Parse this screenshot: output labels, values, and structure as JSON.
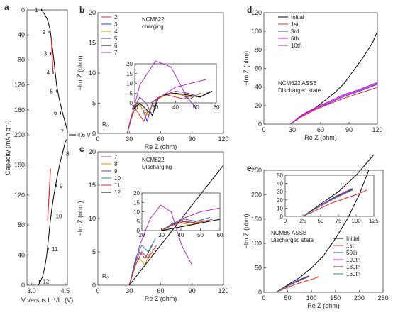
{
  "chart_data": [
    {
      "panel": "a",
      "type": "line",
      "xlabel": "V versus Li⁺/Li (V)",
      "ylabel": "Capacity (mAh g⁻¹)",
      "xticks": [
        "3.0",
        "4.5"
      ],
      "yticks": [
        "0",
        "40",
        "80",
        "120",
        "160",
        "200",
        "160",
        "120",
        "80",
        "40",
        "0"
      ],
      "xlim": [
        2.8,
        4.6
      ],
      "ylim_charge": [
        0,
        200
      ],
      "ylim_discharge": [
        200,
        0
      ],
      "x_label_45_alt": "4.6 V",
      "curve_charge": {
        "x": [
          3.45,
          3.6,
          3.72,
          3.78,
          3.83,
          3.88,
          3.93,
          3.99,
          4.05,
          4.12,
          4.22,
          4.35,
          4.46,
          4.55,
          4.6
        ],
        "y": [
          0,
          8,
          16,
          24,
          32,
          45,
          60,
          78,
          98,
          120,
          140,
          160,
          175,
          186,
          195
        ]
      },
      "curve_discharge": {
        "x": [
          4.6,
          4.5,
          4.38,
          4.25,
          4.12,
          4.0,
          3.9,
          3.82,
          3.75,
          3.68,
          3.6,
          3.5,
          3.4,
          3.3
        ],
        "y": [
          195,
          190,
          175,
          160,
          140,
          120,
          100,
          80,
          60,
          40,
          25,
          12,
          5,
          0
        ]
      },
      "points_charge": [
        {
          "label": "1",
          "x": 3.45,
          "y": 0
        },
        {
          "label": "2",
          "x": 3.78,
          "y": 35
        },
        {
          "label": "3",
          "x": 3.85,
          "y": 70
        },
        {
          "label": "4",
          "x": 3.97,
          "y": 100
        },
        {
          "label": "5",
          "x": 4.12,
          "y": 130
        },
        {
          "label": "6",
          "x": 4.3,
          "y": 165
        },
        {
          "label": "7",
          "x": 4.6,
          "y": 195
        }
      ],
      "points_discharge": [
        {
          "label": "8",
          "x": 4.38,
          "y": 175
        },
        {
          "label": "9",
          "x": 4.1,
          "y": 132
        },
        {
          "label": "10",
          "x": 3.92,
          "y": 92
        },
        {
          "label": "11",
          "x": 3.75,
          "y": 48
        },
        {
          "label": "12",
          "x": 3.35,
          "y": 5
        }
      ],
      "marker_label": "4.6 V",
      "colors": {
        "curve": "#000000",
        "arrow": "#e8232a"
      }
    },
    {
      "panel": "b",
      "type": "line",
      "title": "NCM622\ncharging",
      "xlabel": "Re Z (ohm)",
      "ylabel": "−Im Z (ohm)",
      "xlim": [
        0,
        120
      ],
      "ylim": [
        0,
        20
      ],
      "xticks": [
        "0",
        "30",
        "60",
        "90",
        "120"
      ],
      "yticks": [
        "0",
        "5",
        "10",
        "15",
        "20"
      ],
      "inset": {
        "xlim": [
          20,
          60
        ],
        "ylim": [
          0,
          20
        ],
        "xticks": [
          "20",
          "30",
          "40",
          "50",
          "60"
        ],
        "yticks": [
          "0",
          "5",
          "10",
          "15",
          "20"
        ]
      },
      "annotation": "R₀",
      "series": [
        {
          "name": "2",
          "color": "#e8232a",
          "x": [
            28,
            32,
            36,
            40,
            44,
            48
          ],
          "y": [
            0,
            3,
            4,
            3,
            2,
            4
          ]
        },
        {
          "name": "3",
          "color": "#3040d0",
          "x": [
            28,
            33,
            38,
            43,
            47,
            52
          ],
          "y": [
            0,
            3,
            5,
            4,
            2,
            5
          ]
        },
        {
          "name": "4",
          "color": "#d79b00",
          "x": [
            28,
            33,
            38,
            43,
            48,
            53
          ],
          "y": [
            0,
            3,
            5,
            4,
            3,
            5
          ]
        },
        {
          "name": "5",
          "color": "#6b3b9a",
          "x": [
            28,
            34,
            40,
            46,
            52,
            57
          ],
          "y": [
            0,
            4,
            6,
            5,
            3,
            6
          ]
        },
        {
          "name": "6",
          "color": "#000000",
          "x": [
            28,
            34,
            40,
            46,
            52,
            58
          ],
          "y": [
            0,
            4,
            5,
            4,
            3,
            6
          ]
        },
        {
          "name": "7",
          "color": "#b030c0",
          "x": [
            28,
            40,
            55,
            70,
            85,
            95
          ],
          "y": [
            0,
            8,
            12,
            11,
            6,
            4
          ]
        }
      ],
      "colors": {
        "frame": "#444444"
      }
    },
    {
      "panel": "c",
      "type": "line",
      "title": "NCM622\nDischarging",
      "xlabel": "Re Z (ohm)",
      "ylabel": "−Im Z (ohm)",
      "xlim": [
        0,
        120
      ],
      "ylim": [
        0,
        20
      ],
      "xticks": [
        "0",
        "30",
        "60",
        "90",
        "120"
      ],
      "yticks": [
        "0",
        "5",
        "10",
        "15",
        "20"
      ],
      "inset": {
        "xlim": [
          20,
          60
        ],
        "ylim": [
          0,
          20
        ],
        "xticks": [
          "20",
          "30",
          "40",
          "50",
          "60"
        ],
        "yticks": [
          "0",
          "5",
          "10",
          "15",
          "20"
        ]
      },
      "annotation": "R₀",
      "series": [
        {
          "name": "7",
          "color": "#b030c0",
          "x": [
            30,
            40,
            50,
            60,
            70,
            80,
            90
          ],
          "y": [
            0,
            6,
            10,
            12,
            11,
            6,
            3
          ]
        },
        {
          "name": "8",
          "color": "#d79b00",
          "x": [
            30,
            35,
            40,
            45,
            50
          ],
          "y": [
            0,
            3,
            4,
            3,
            5
          ]
        },
        {
          "name": "9",
          "color": "#6b3b9a",
          "x": [
            30,
            35,
            40,
            45,
            52
          ],
          "y": [
            0,
            3,
            5,
            4,
            6
          ]
        },
        {
          "name": "10",
          "color": "#2a8c9a",
          "x": [
            30,
            36,
            42,
            48,
            55
          ],
          "y": [
            0,
            4,
            6,
            5,
            7
          ]
        },
        {
          "name": "11",
          "color": "#e8232a",
          "x": [
            30,
            36,
            42,
            48,
            56
          ],
          "y": [
            0,
            3,
            5,
            4,
            6
          ]
        },
        {
          "name": "12",
          "color": "#000000",
          "x": [
            30,
            45,
            60,
            75,
            90,
            105,
            120
          ],
          "y": [
            0,
            3,
            6,
            9,
            12,
            15,
            18
          ]
        }
      ],
      "colors": {
        "frame": "#444444"
      }
    },
    {
      "panel": "d",
      "type": "line",
      "title": "NCM622 ASSB\nDischarged state",
      "xlabel": "Re Z (ohm)",
      "ylabel": "−Im Z (ohm)",
      "xlim": [
        0,
        120
      ],
      "ylim": [
        0,
        120
      ],
      "xticks": [
        "0",
        "30",
        "60",
        "90",
        "120"
      ],
      "yticks": [
        "0",
        "20",
        "40",
        "60",
        "80",
        "100",
        "120"
      ],
      "series": [
        {
          "name": "Initial",
          "color": "#000000",
          "x": [
            28,
            35,
            45,
            55,
            65,
            75,
            85,
            95,
            105,
            115,
            120
          ],
          "y": [
            0,
            5,
            12,
            18,
            26,
            34,
            44,
            58,
            72,
            88,
            100
          ]
        },
        {
          "name": "1st",
          "color": "#e8232a",
          "x": [
            28,
            40,
            55,
            70,
            85,
            100,
            115,
            120
          ],
          "y": [
            0,
            8,
            16,
            22,
            28,
            33,
            38,
            40
          ]
        },
        {
          "name": "3rd",
          "color": "#3040d0",
          "x": [
            28,
            40,
            55,
            70,
            85,
            100,
            115,
            120
          ],
          "y": [
            0,
            9,
            17,
            23,
            30,
            35,
            41,
            43
          ]
        },
        {
          "name": "6th",
          "color": "#ff00ff",
          "x": [
            28,
            40,
            55,
            70,
            85,
            100,
            115,
            120
          ],
          "y": [
            0,
            9,
            17,
            24,
            31,
            36,
            42,
            44
          ]
        },
        {
          "name": "10th",
          "color": "#9030a0",
          "x": [
            28,
            40,
            55,
            70,
            85,
            100,
            115,
            120
          ],
          "y": [
            0,
            10,
            18,
            25,
            32,
            37,
            43,
            45
          ]
        }
      ]
    },
    {
      "panel": "e",
      "type": "line",
      "title": "NCM85 ASSB\nDischarged state",
      "xlabel": "Re Z (ohm)",
      "ylabel": "−Im Z (ohm)",
      "xlim": [
        0,
        250
      ],
      "ylim": [
        0,
        250
      ],
      "xticks": [
        "0",
        "50",
        "100",
        "150",
        "200",
        "250"
      ],
      "yticks": [
        "0",
        "50",
        "100",
        "150",
        "200",
        "250"
      ],
      "inset": {
        "xlim": [
          0,
          125
        ],
        "ylim": [
          0,
          50
        ],
        "xticks": [
          "0",
          "25",
          "50",
          "75",
          "100",
          "125"
        ],
        "yticks": [
          "0",
          "10",
          "20",
          "30",
          "40",
          "50"
        ]
      },
      "series": [
        {
          "name": "Initial",
          "color": "#000000",
          "x": [
            25,
            50,
            75,
            100,
            125,
            150,
            175,
            200,
            220
          ],
          "y": [
            0,
            15,
            30,
            50,
            75,
            110,
            150,
            200,
            250
          ]
        },
        {
          "name": "1st",
          "color": "#e8232a",
          "x": [
            25,
            45,
            65,
            85,
            105,
            115
          ],
          "y": [
            0,
            8,
            16,
            22,
            28,
            32
          ]
        },
        {
          "name": "50th",
          "color": "#3040d0",
          "x": [
            25,
            40,
            55,
            70,
            85,
            95
          ],
          "y": [
            0,
            8,
            16,
            24,
            30,
            34
          ]
        },
        {
          "name": "100th",
          "color": "#ff00ff",
          "x": [
            25,
            40,
            55,
            70,
            85,
            95
          ],
          "y": [
            0,
            8,
            16,
            23,
            30,
            33
          ]
        },
        {
          "name": "130th",
          "color": "#7a2b10",
          "x": [
            25,
            40,
            55,
            70,
            85,
            95
          ],
          "y": [
            0,
            8,
            15,
            23,
            29,
            33
          ]
        },
        {
          "name": "160th",
          "color": "#2a8c9a",
          "x": [
            25,
            40,
            55,
            70,
            85,
            95
          ],
          "y": [
            0,
            8,
            15,
            22,
            28,
            32
          ]
        }
      ]
    }
  ],
  "panel_labels": [
    "a",
    "b",
    "c",
    "d",
    "e"
  ]
}
